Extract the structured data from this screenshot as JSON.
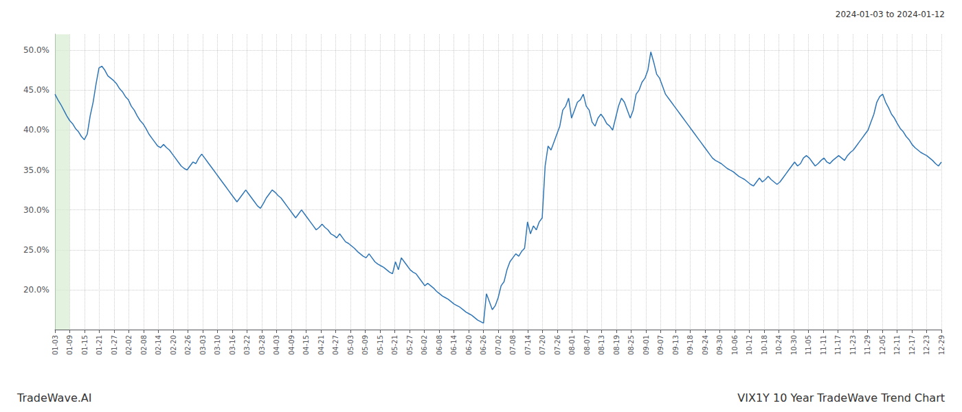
{
  "chart_data": {
    "type": "line",
    "title": "VIX1Y 10 Year TradeWave Trend Chart",
    "subtitle": "2024-01-03 to 2024-01-12",
    "annotations": [
      "TradeWave.AI"
    ],
    "color": "#2e75b6",
    "grid": true,
    "xlim": [
      0,
      60
    ],
    "xticks": [
      {
        "value": 0,
        "label": "01-03"
      },
      {
        "value": 1,
        "label": "01-09"
      },
      {
        "value": 2,
        "label": "01-15"
      },
      {
        "value": 3,
        "label": "01-21"
      },
      {
        "value": 4,
        "label": "01-27"
      },
      {
        "value": 5,
        "label": "02-02"
      },
      {
        "value": 6,
        "label": "02-08"
      },
      {
        "value": 7,
        "label": "02-14"
      },
      {
        "value": 8,
        "label": "02-20"
      },
      {
        "value": 9,
        "label": "02-26"
      },
      {
        "value": 10,
        "label": "03-03"
      },
      {
        "value": 11,
        "label": "03-10"
      },
      {
        "value": 12,
        "label": "03-16"
      },
      {
        "value": 13,
        "label": "03-22"
      },
      {
        "value": 14,
        "label": "03-28"
      },
      {
        "value": 15,
        "label": "04-03"
      },
      {
        "value": 16,
        "label": "04-09"
      },
      {
        "value": 17,
        "label": "04-15"
      },
      {
        "value": 18,
        "label": "04-21"
      },
      {
        "value": 19,
        "label": "04-27"
      },
      {
        "value": 20,
        "label": "05-03"
      },
      {
        "value": 21,
        "label": "05-09"
      },
      {
        "value": 22,
        "label": "05-15"
      },
      {
        "value": 23,
        "label": "05-21"
      },
      {
        "value": 24,
        "label": "05-27"
      },
      {
        "value": 25,
        "label": "06-02"
      },
      {
        "value": 26,
        "label": "06-08"
      },
      {
        "value": 27,
        "label": "06-14"
      },
      {
        "value": 28,
        "label": "06-20"
      },
      {
        "value": 29,
        "label": "06-26"
      },
      {
        "value": 30,
        "label": "07-02"
      },
      {
        "value": 31,
        "label": "07-08"
      },
      {
        "value": 32,
        "label": "07-14"
      },
      {
        "value": 33,
        "label": "07-20"
      },
      {
        "value": 34,
        "label": "07-26"
      },
      {
        "value": 35,
        "label": "08-01"
      },
      {
        "value": 36,
        "label": "08-07"
      },
      {
        "value": 37,
        "label": "08-13"
      },
      {
        "value": 38,
        "label": "08-19"
      },
      {
        "value": 39,
        "label": "08-25"
      },
      {
        "value": 40,
        "label": "09-01"
      },
      {
        "value": 41,
        "label": "09-07"
      },
      {
        "value": 42,
        "label": "09-13"
      },
      {
        "value": 43,
        "label": "09-18"
      },
      {
        "value": 44,
        "label": "09-24"
      },
      {
        "value": 45,
        "label": "09-30"
      },
      {
        "value": 46,
        "label": "10-06"
      },
      {
        "value": 47,
        "label": "10-12"
      },
      {
        "value": 48,
        "label": "10-18"
      },
      {
        "value": 49,
        "label": "10-24"
      },
      {
        "value": 50,
        "label": "10-30"
      },
      {
        "value": 51,
        "label": "11-05"
      },
      {
        "value": 52,
        "label": "11-11"
      },
      {
        "value": 53,
        "label": "11-17"
      },
      {
        "value": 54,
        "label": "11-23"
      },
      {
        "value": 55,
        "label": "11-29"
      },
      {
        "value": 56,
        "label": "12-05"
      },
      {
        "value": 57,
        "label": "12-11"
      },
      {
        "value": 58,
        "label": "12-17"
      },
      {
        "value": 59,
        "label": "12-23"
      },
      {
        "value": 60,
        "label": "12-29"
      }
    ],
    "ylim": [
      15.0,
      52.0
    ],
    "yticks": [
      {
        "value": 20.0,
        "label": "20.0%"
      },
      {
        "value": 25.0,
        "label": "25.0%"
      },
      {
        "value": 30.0,
        "label": "30.0%"
      },
      {
        "value": 35.0,
        "label": "35.0%"
      },
      {
        "value": 40.0,
        "label": "40.0%"
      },
      {
        "value": 45.0,
        "label": "45.0%"
      },
      {
        "value": 50.0,
        "label": "50.0%"
      }
    ],
    "shaded_xrange": [
      0,
      1
    ],
    "shade_color": "#d6ecd2",
    "values": [
      44.5,
      43.8,
      43.2,
      42.5,
      41.8,
      41.2,
      40.8,
      40.2,
      39.8,
      39.2,
      38.8,
      39.5,
      41.8,
      43.5,
      45.8,
      47.8,
      48.0,
      47.5,
      46.8,
      46.5,
      46.2,
      45.8,
      45.2,
      44.8,
      44.2,
      43.8,
      43.0,
      42.5,
      41.8,
      41.2,
      40.8,
      40.2,
      39.5,
      39.0,
      38.5,
      38.0,
      37.8,
      38.2,
      37.8,
      37.5,
      37.0,
      36.5,
      36.0,
      35.5,
      35.2,
      35.0,
      35.5,
      36.0,
      35.8,
      36.5,
      37.0,
      36.5,
      36.0,
      35.5,
      35.0,
      34.5,
      34.0,
      33.5,
      33.0,
      32.5,
      32.0,
      31.5,
      31.0,
      31.5,
      32.0,
      32.5,
      32.0,
      31.5,
      31.0,
      30.5,
      30.2,
      30.8,
      31.5,
      32.0,
      32.5,
      32.2,
      31.8,
      31.5,
      31.0,
      30.5,
      30.0,
      29.5,
      29.0,
      29.5,
      30.0,
      29.5,
      29.0,
      28.5,
      28.0,
      27.5,
      27.8,
      28.2,
      27.8,
      27.5,
      27.0,
      26.8,
      26.5,
      27.0,
      26.5,
      26.0,
      25.8,
      25.5,
      25.2,
      24.8,
      24.5,
      24.2,
      24.0,
      24.5,
      24.0,
      23.5,
      23.2,
      23.0,
      22.8,
      22.5,
      22.2,
      22.0,
      23.5,
      22.5,
      24.0,
      23.5,
      23.0,
      22.5,
      22.2,
      22.0,
      21.5,
      21.0,
      20.5,
      20.8,
      20.5,
      20.2,
      19.8,
      19.5,
      19.2,
      19.0,
      18.8,
      18.5,
      18.2,
      18.0,
      17.8,
      17.5,
      17.2,
      17.0,
      16.8,
      16.5,
      16.2,
      16.0,
      15.8,
      19.5,
      18.5,
      17.5,
      18.0,
      19.0,
      20.5,
      21.0,
      22.5,
      23.5,
      24.0,
      24.5,
      24.2,
      24.8,
      25.2,
      28.5,
      27.0,
      28.0,
      27.5,
      28.5,
      29.0,
      35.5,
      38.0,
      37.5,
      38.5,
      39.5,
      40.5,
      42.5,
      43.0,
      44.0,
      41.5,
      42.5,
      43.5,
      43.8,
      44.5,
      43.0,
      42.5,
      41.0,
      40.5,
      41.5,
      42.0,
      41.5,
      40.8,
      40.5,
      40.0,
      41.5,
      43.0,
      44.0,
      43.5,
      42.5,
      41.5,
      42.5,
      44.5,
      45.0,
      46.0,
      46.5,
      47.5,
      49.8,
      48.5,
      47.0,
      46.5,
      45.5,
      44.5,
      44.0,
      43.5,
      43.0,
      42.5,
      42.0,
      41.5,
      41.0,
      40.5,
      40.0,
      39.5,
      39.0,
      38.5,
      38.0,
      37.5,
      37.0,
      36.5,
      36.2,
      36.0,
      35.8,
      35.5,
      35.2,
      35.0,
      34.8,
      34.5,
      34.2,
      34.0,
      33.8,
      33.5,
      33.2,
      33.0,
      33.5,
      34.0,
      33.5,
      33.8,
      34.2,
      33.8,
      33.5,
      33.2,
      33.5,
      34.0,
      34.5,
      35.0,
      35.5,
      36.0,
      35.5,
      35.8,
      36.5,
      36.8,
      36.5,
      36.0,
      35.5,
      35.8,
      36.2,
      36.5,
      36.0,
      35.8,
      36.2,
      36.5,
      36.8,
      36.5,
      36.2,
      36.8,
      37.2,
      37.5,
      38.0,
      38.5,
      39.0,
      39.5,
      40.0,
      41.0,
      42.0,
      43.5,
      44.2,
      44.5,
      43.5,
      42.8,
      42.0,
      41.5,
      40.8,
      40.2,
      39.8,
      39.2,
      38.8,
      38.2,
      37.8,
      37.5,
      37.2,
      37.0,
      36.8,
      36.5,
      36.2,
      35.8,
      35.5,
      36.0
    ]
  }
}
